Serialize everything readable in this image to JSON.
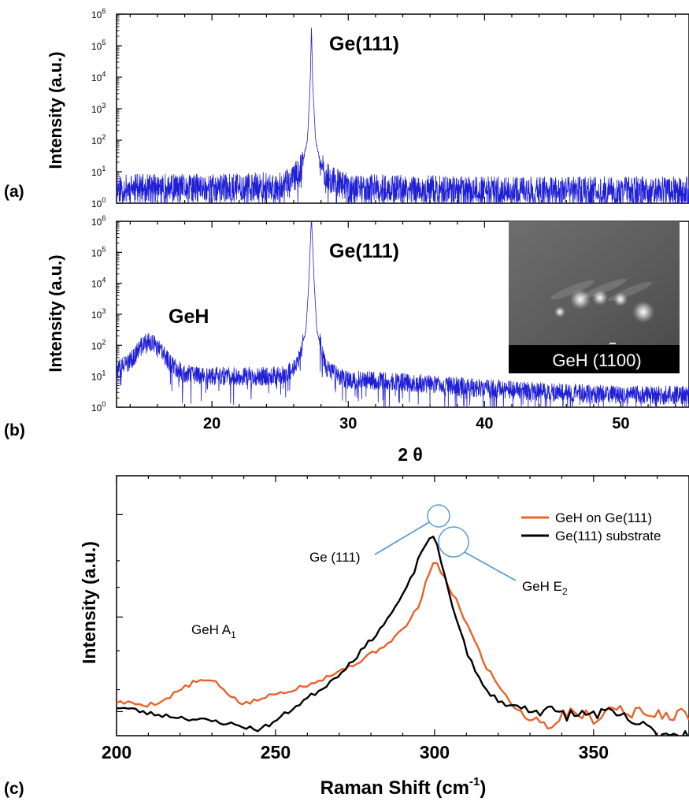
{
  "panels": {
    "a": {
      "label": "(a)"
    },
    "b": {
      "label": "(b)"
    },
    "c": {
      "label": "(c)"
    }
  },
  "chart_data": [
    {
      "type": "line",
      "panel": "(a)",
      "ylabel": "Intensity (a.u.)",
      "yscale": "log",
      "ylim": [
        1,
        1000000
      ],
      "xlim": [
        13,
        55
      ],
      "yticks": [
        "10",
        "10",
        "10",
        "10",
        "10",
        "10",
        "10"
      ],
      "ytick_exponents": [
        "0",
        "1",
        "2",
        "3",
        "4",
        "5",
        "6"
      ],
      "annotations": [
        {
          "text": "Ge(111)",
          "x": 27.3
        }
      ],
      "series": [
        {
          "color": "#1f1fd6",
          "x": [
            13,
            20,
            25,
            26,
            26.6,
            27.0,
            27.2,
            27.3,
            27.4,
            27.6,
            28.0,
            28.6,
            30,
            40,
            55
          ],
          "y": [
            3,
            3,
            3.5,
            6,
            15,
            100,
            5000,
            400000,
            5000,
            100,
            15,
            6,
            3,
            2.5,
            2.5
          ]
        }
      ]
    },
    {
      "type": "line",
      "panel": "(b)",
      "xlabel": "2 θ",
      "ylabel": "Intensity (a.u.)",
      "yscale": "log",
      "ylim": [
        1,
        1000000
      ],
      "xlim": [
        13,
        55
      ],
      "xticks": [
        "20",
        "30",
        "40",
        "50"
      ],
      "yticks": [
        "10",
        "10",
        "10",
        "10",
        "10",
        "10",
        "10"
      ],
      "ytick_exponents": [
        "0",
        "1",
        "2",
        "3",
        "4",
        "5",
        "6"
      ],
      "annotations": [
        {
          "text": "GeH",
          "x": 15.3
        },
        {
          "text": "Ge(111)",
          "x": 27.3
        }
      ],
      "inset": {
        "label": "GeH (1100)",
        "overbar_on": "first 1"
      },
      "series": [
        {
          "color": "#1f1fd6",
          "x": [
            13,
            14,
            14.6,
            15.0,
            15.3,
            15.7,
            16.3,
            17,
            18,
            20,
            22,
            24,
            25.5,
            26.3,
            26.9,
            27.1,
            27.3,
            27.5,
            27.7,
            28.3,
            29,
            30,
            35,
            40,
            45,
            50,
            55
          ],
          "y": [
            15,
            30,
            70,
            110,
            130,
            110,
            60,
            25,
            12,
            10,
            10,
            10,
            12,
            25,
            300,
            10000,
            1500000,
            10000,
            300,
            25,
            12,
            8,
            6,
            4,
            3,
            2.5,
            2.5
          ]
        }
      ]
    },
    {
      "type": "line",
      "panel": "(c)",
      "xlabel": "Raman Shift (cm",
      "xlabel_sup": "-1",
      "xlabel_end": ")",
      "ylabel": "Intensity (a.u.)",
      "yscale": "log",
      "xlim": [
        200,
        380
      ],
      "ylim": [
        0.5,
        1.4
      ],
      "xticks": [
        "200",
        "250",
        "300",
        "350"
      ],
      "legend": "top-right",
      "annotations": [
        {
          "text": "GeH A",
          "sub": "1",
          "x": 227
        },
        {
          "text": "Ge (111)",
          "x": 299
        },
        {
          "text": "GeH E",
          "sub": "2",
          "x": 305
        }
      ],
      "series": [
        {
          "name": "GeH on Ge(111)",
          "color": "#e8632a",
          "x": [
            200,
            205,
            210,
            215,
            220,
            225,
            230,
            233,
            236,
            240,
            245,
            250,
            255,
            260,
            265,
            270,
            275,
            280,
            285,
            290,
            293,
            296,
            298,
            300,
            302,
            305,
            308,
            310,
            313,
            316,
            320,
            323,
            326,
            330,
            333,
            336,
            340,
            343,
            346,
            350,
            353,
            356,
            360,
            365,
            370,
            375,
            380
          ],
          "y": [
            0.572,
            0.568,
            0.565,
            0.575,
            0.6,
            0.62,
            0.622,
            0.605,
            0.585,
            0.565,
            0.578,
            0.59,
            0.6,
            0.612,
            0.628,
            0.645,
            0.665,
            0.69,
            0.72,
            0.76,
            0.8,
            0.86,
            0.95,
            1.0,
            0.955,
            0.89,
            0.83,
            0.78,
            0.72,
            0.66,
            0.612,
            0.58,
            0.553,
            0.54,
            0.53,
            0.52,
            0.54,
            0.555,
            0.545,
            0.535,
            0.548,
            0.56,
            0.552,
            0.546,
            0.542,
            0.545,
            0.542
          ]
        },
        {
          "name": "Ge(111) substrate",
          "color": "#000000",
          "x": [
            200,
            205,
            210,
            215,
            220,
            225,
            230,
            235,
            240,
            245,
            250,
            255,
            260,
            265,
            270,
            275,
            280,
            285,
            290,
            293,
            296,
            299,
            301,
            303,
            305,
            308,
            310,
            313,
            316,
            320,
            323,
            326,
            330,
            335,
            340,
            345,
            350,
            355,
            360,
            365,
            370
          ],
          "y": [
            0.56,
            0.555,
            0.546,
            0.542,
            0.538,
            0.533,
            0.53,
            0.525,
            0.518,
            0.512,
            0.53,
            0.555,
            0.58,
            0.605,
            0.638,
            0.68,
            0.73,
            0.79,
            0.87,
            0.94,
            1.04,
            1.11,
            1.05,
            0.95,
            0.86,
            0.76,
            0.7,
            0.64,
            0.6,
            0.575,
            0.565,
            0.56,
            0.558,
            0.552,
            0.545,
            0.542,
            0.548,
            0.545,
            0.535,
            0.52,
            0.505
          ]
        }
      ]
    }
  ]
}
